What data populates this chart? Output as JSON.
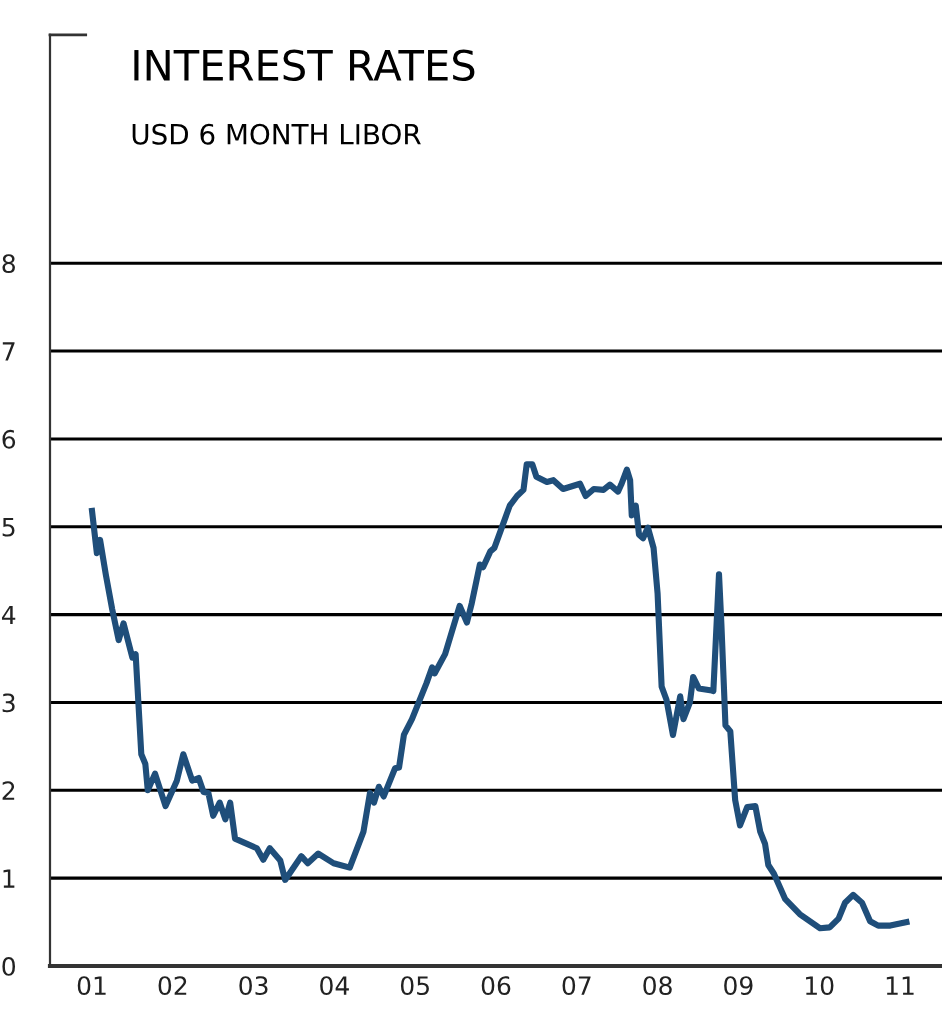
{
  "chart_data": {
    "type": "line",
    "title": "INTEREST RATES",
    "subtitle": "USD 6 MONTH LIBOR",
    "x": [
      2001.0,
      2001.06,
      2001.1,
      2001.17,
      2001.25,
      2001.33,
      2001.39,
      2001.5,
      2001.54,
      2001.61,
      2001.66,
      2001.69,
      2001.78,
      2001.91,
      2002.05,
      2002.13,
      2002.24,
      2002.32,
      2002.38,
      2002.44,
      2002.5,
      2002.58,
      2002.65,
      2002.71,
      2002.77,
      2003.04,
      2003.12,
      2003.2,
      2003.33,
      2003.39,
      2003.59,
      2003.67,
      2003.8,
      2003.99,
      2004.19,
      2004.36,
      2004.44,
      2004.49,
      2004.55,
      2004.61,
      2004.75,
      2004.8,
      2004.86,
      2004.96,
      2005.14,
      2005.21,
      2005.24,
      2005.37,
      2005.55,
      2005.64,
      2005.7,
      2005.8,
      2005.84,
      2005.93,
      2005.98,
      2006.17,
      2006.26,
      2006.34,
      2006.38,
      2006.45,
      2006.5,
      2006.63,
      2006.71,
      2006.83,
      2007.04,
      2007.11,
      2007.21,
      2007.33,
      2007.41,
      2007.51,
      2007.55,
      2007.62,
      2007.66,
      2007.68,
      2007.73,
      2007.77,
      2007.82,
      2007.88,
      2007.95,
      2008.0,
      2008.05,
      2008.11,
      2008.19,
      2008.28,
      2008.32,
      2008.4,
      2008.44,
      2008.51,
      2008.65,
      2008.69,
      2008.76,
      2008.79,
      2008.84,
      2008.9,
      2008.96,
      2009.02,
      2009.11,
      2009.21,
      2009.27,
      2009.33,
      2009.37,
      2009.44,
      2009.58,
      2009.76,
      2010.01,
      2010.13,
      2010.24,
      2010.32,
      2010.42,
      2010.53,
      2010.63,
      2010.73,
      2010.88,
      2011.08
    ],
    "series": [
      {
        "color": "#1f4e7a",
        "values": [
          5.18,
          4.7,
          4.85,
          4.46,
          4.06,
          3.71,
          3.9,
          3.51,
          3.55,
          2.41,
          2.3,
          2.0,
          2.19,
          1.82,
          2.11,
          2.41,
          2.11,
          2.14,
          1.98,
          1.97,
          1.71,
          1.86,
          1.67,
          1.86,
          1.45,
          1.34,
          1.21,
          1.34,
          1.2,
          0.98,
          1.25,
          1.17,
          1.28,
          1.17,
          1.12,
          1.53,
          1.97,
          1.86,
          2.04,
          1.93,
          2.25,
          2.26,
          2.63,
          2.81,
          3.22,
          3.4,
          3.33,
          3.55,
          4.1,
          3.91,
          4.13,
          4.57,
          4.54,
          4.72,
          4.76,
          5.24,
          5.35,
          5.42,
          5.71,
          5.71,
          5.57,
          5.51,
          5.53,
          5.43,
          5.49,
          5.35,
          5.43,
          5.42,
          5.48,
          5.4,
          5.48,
          5.65,
          5.53,
          5.13,
          5.24,
          4.91,
          4.87,
          4.99,
          4.76,
          4.24,
          3.18,
          3.03,
          2.63,
          3.07,
          2.81,
          3.0,
          3.29,
          3.16,
          3.14,
          3.13,
          4.46,
          3.88,
          2.74,
          2.67,
          1.89,
          1.6,
          1.81,
          1.82,
          1.53,
          1.39,
          1.15,
          1.05,
          0.76,
          0.59,
          0.43,
          0.44,
          0.54,
          0.72,
          0.81,
          0.72,
          0.51,
          0.46,
          0.46,
          0.5
        ]
      }
    ],
    "xlim": [
      2000.48,
      2011.52
    ],
    "xticks": [
      {
        "value": 2001,
        "label": "01"
      },
      {
        "value": 2002,
        "label": "02"
      },
      {
        "value": 2003,
        "label": "03"
      },
      {
        "value": 2004,
        "label": "04"
      },
      {
        "value": 2005,
        "label": "05"
      },
      {
        "value": 2006,
        "label": "06"
      },
      {
        "value": 2007,
        "label": "07"
      },
      {
        "value": 2008,
        "label": "08"
      },
      {
        "value": 2009,
        "label": "09"
      },
      {
        "value": 2010,
        "label": "10"
      },
      {
        "value": 2011,
        "label": "11"
      }
    ],
    "ylim": [
      0,
      10.6
    ],
    "yticks": [
      0,
      1,
      2,
      3,
      4,
      5,
      6,
      7,
      8
    ],
    "grid": "y",
    "legend": false,
    "marker": "none",
    "line_style": "solid"
  }
}
